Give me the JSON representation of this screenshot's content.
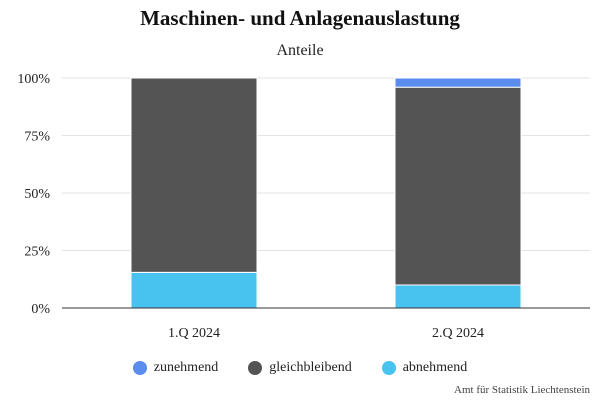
{
  "chart_data": {
    "type": "bar",
    "stacked": true,
    "title": "Maschinen- und Anlagenauslastung",
    "subtitle": "Anteile",
    "categories": [
      "1.Q 2024",
      "2.Q 2024"
    ],
    "series": [
      {
        "name": "abnehmend",
        "values": [
          15.5,
          10
        ],
        "color": "#48c2ef"
      },
      {
        "name": "gleichbleibend",
        "values": [
          84.5,
          86
        ],
        "color": "#545454"
      },
      {
        "name": "zunehmend",
        "values": [
          0,
          4
        ],
        "color": "#5b8def"
      }
    ],
    "legend_order": [
      "zunehmend",
      "gleichbleibend",
      "abnehmend"
    ],
    "yticks": [
      "0%",
      "25%",
      "50%",
      "75%",
      "100%"
    ],
    "ylim": [
      0,
      100
    ],
    "grid": true,
    "legend_position": "bottom"
  },
  "credit": "Amt für Statistik Liechtenstein"
}
